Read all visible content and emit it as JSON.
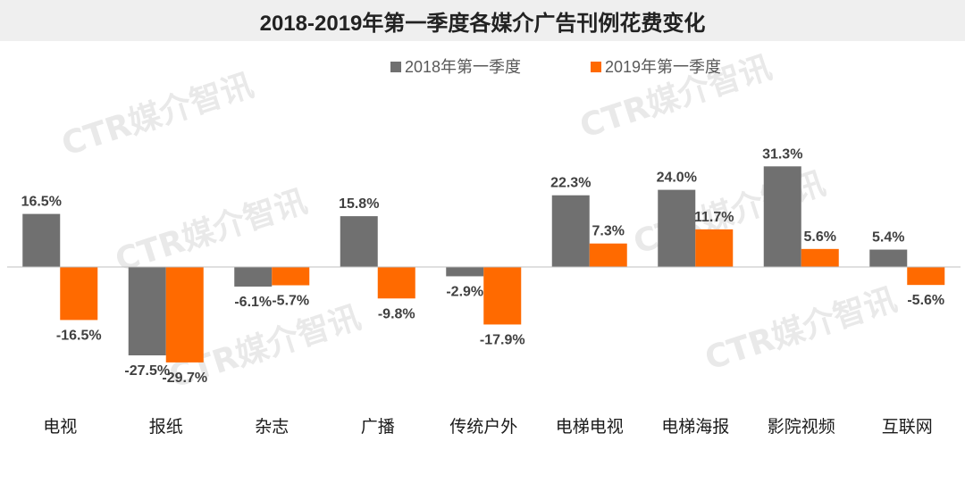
{
  "chart_data": {
    "type": "bar",
    "title": "2018-2019年第一季度各媒介广告刊例花费变化",
    "categories": [
      "电视",
      "报纸",
      "杂志",
      "广播",
      "传统户外",
      "电梯电视",
      "电梯海报",
      "影院视频",
      "互联网"
    ],
    "series": [
      {
        "name": "2018年第一季度",
        "color": "#707070",
        "values": [
          16.5,
          -27.5,
          -6.1,
          15.8,
          -2.9,
          22.3,
          24.0,
          31.3,
          5.4
        ],
        "labels": [
          "16.5%",
          "-27.5%",
          "-6.1%",
          "15.8%",
          "-2.9%",
          "22.3%",
          "24.0%",
          "31.3%",
          "5.4%"
        ]
      },
      {
        "name": "2019年第一季度",
        "color": "#ff6a00",
        "values": [
          -16.5,
          -29.7,
          -5.7,
          -9.8,
          -17.9,
          7.3,
          11.7,
          5.6,
          -5.6
        ],
        "labels": [
          "-16.5%",
          "-29.7%",
          "-5.7%",
          "-9.8%",
          "-17.9%",
          "7.3%",
          "11.7%",
          "5.6%",
          "-5.6%"
        ]
      }
    ],
    "unit": "%",
    "legend_position": "top",
    "grid": false,
    "watermark": "CTR媒介智讯"
  }
}
